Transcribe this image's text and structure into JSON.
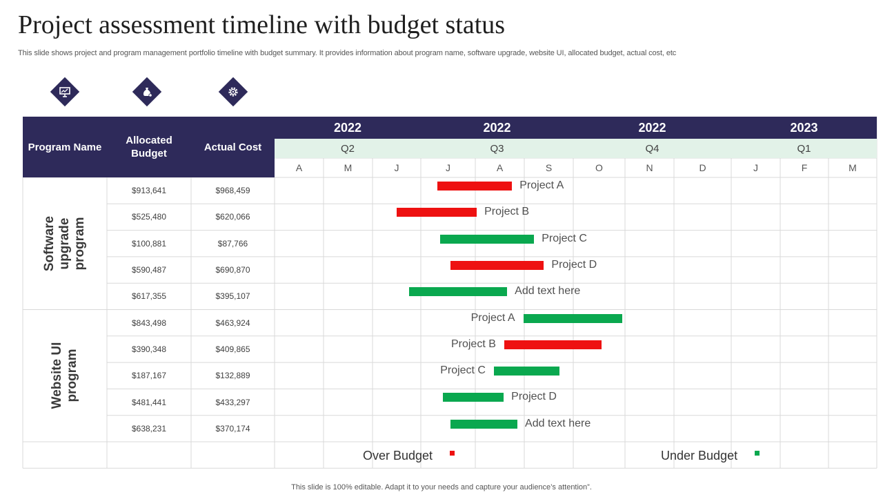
{
  "title": "Project assessment timeline with budget status",
  "subtitle": "This slide shows project and program management portfolio timeline with budget summary. It provides information about program name, software upgrade, website UI, allocated budget, actual cost, etc",
  "icons": [
    "presentation-icon",
    "money-bag-icon",
    "gear-icon"
  ],
  "colors": {
    "header": "#2e2a5a",
    "quarter_band": "#e2f2e8",
    "over_budget": "#ee1111",
    "under_budget": "#0aa84f"
  },
  "table": {
    "headers": {
      "program": "Program Name",
      "budget": "Allocated Budget",
      "cost": "Actual Cost"
    },
    "years": [
      "2022",
      "2022",
      "2022",
      "2023"
    ],
    "quarters": [
      "Q2",
      "Q3",
      "Q4",
      "Q1"
    ],
    "months": [
      "A",
      "M",
      "J",
      "J",
      "A",
      "S",
      "O",
      "N",
      "D",
      "J",
      "F",
      "M"
    ],
    "groups": [
      {
        "name": "Software upgrade program",
        "rows": [
          {
            "budget": "$913,641",
            "cost": "$968,459",
            "project": "Project A",
            "status": "over",
            "start": 3.3,
            "end": 4.75
          },
          {
            "budget": "$525,480",
            "cost": "$620,066",
            "project": "Project B",
            "status": "over",
            "start": 2.5,
            "end": 4.03
          },
          {
            "budget": "$100,881",
            "cost": "$87,766",
            "project": "Project C",
            "status": "under",
            "start": 3.35,
            "end": 5.2
          },
          {
            "budget": "$590,487",
            "cost": "$690,870",
            "project": "Project D",
            "status": "over",
            "start": 3.55,
            "end": 5.4
          },
          {
            "budget": "$617,355",
            "cost": "$395,107",
            "project": "Add text here",
            "status": "under",
            "start": 2.75,
            "end": 4.65
          }
        ]
      },
      {
        "name": "Website UI program",
        "rows": [
          {
            "budget": "$843,498",
            "cost": "$463,924",
            "project": "Project A",
            "status": "under",
            "start": 4.98,
            "end": 6.95
          },
          {
            "budget": "$390,348",
            "cost": "$409,865",
            "project": "Project B",
            "status": "over",
            "start": 4.59,
            "end": 6.55
          },
          {
            "budget": "$187,167",
            "cost": "$132,889",
            "project": "Project C",
            "status": "under",
            "start": 4.38,
            "end": 5.72
          },
          {
            "budget": "$481,441",
            "cost": "$433,297",
            "project": "Project D",
            "status": "under",
            "start": 3.4,
            "end": 4.58
          },
          {
            "budget": "$638,231",
            "cost": "$370,174",
            "project": "Add text here",
            "status": "under",
            "start": 3.55,
            "end": 4.86
          }
        ]
      }
    ]
  },
  "legend": {
    "over": "Over Budget",
    "under": "Under Budget"
  },
  "footer": "This slide is 100% editable. Adapt it to your needs and capture your audience’s attention”."
}
